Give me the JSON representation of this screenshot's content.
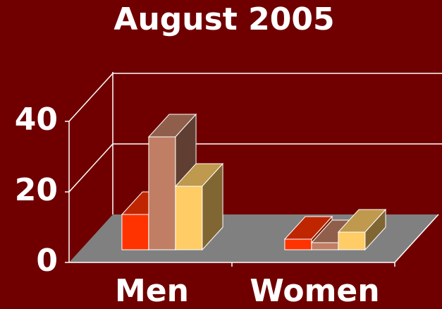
{
  "chart_data": {
    "type": "bar3d",
    "title": "August 2005",
    "categories": [
      "Men",
      "Women"
    ],
    "series": [
      {
        "color": "#ff3300",
        "values": [
          10,
          3
        ]
      },
      {
        "color": "#c07e64",
        "values": [
          32,
          2
        ]
      },
      {
        "color": "#ffcc66",
        "values": [
          18,
          5
        ]
      }
    ],
    "ylim": [
      0,
      40
    ],
    "yticks": [
      0,
      20,
      40
    ],
    "grid": true
  }
}
